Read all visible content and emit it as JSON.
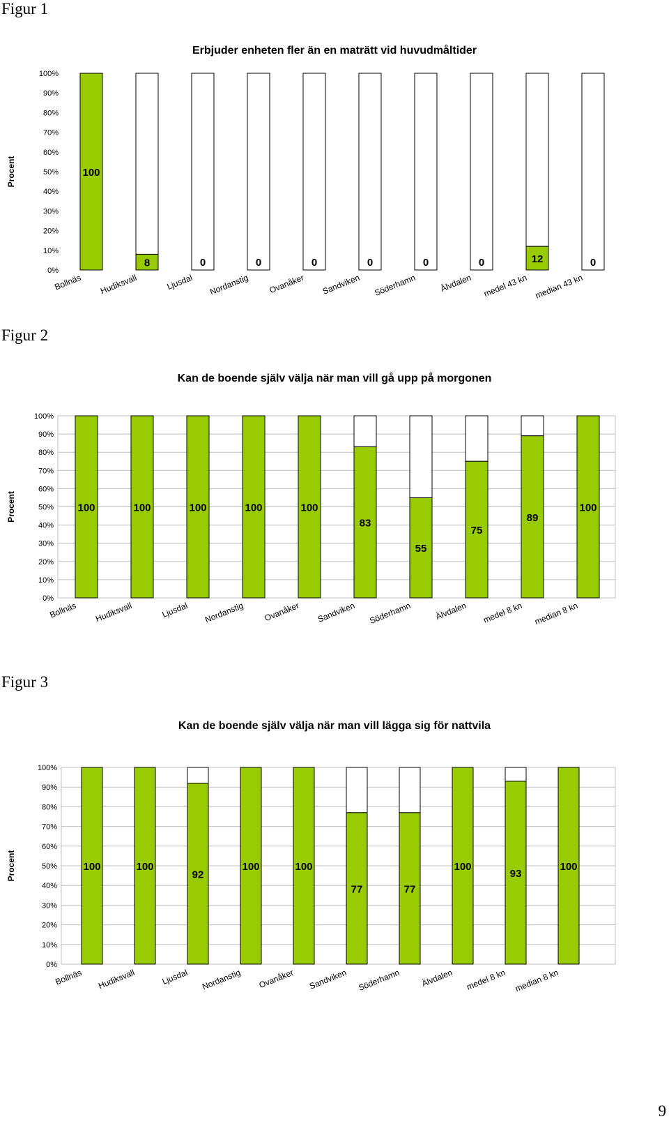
{
  "figures": [
    {
      "label": "Figur 1"
    },
    {
      "label": "Figur 2"
    },
    {
      "label": "Figur 3"
    }
  ],
  "page_number": "9",
  "colors": {
    "fill": "#99cc00",
    "remainder": "#ffffff",
    "grid": "#c0c0c0",
    "stroke": "#000000"
  },
  "chart_data": [
    {
      "type": "bar",
      "stacked": "100%",
      "title": "Erbjuder enheten fler än en maträtt vid huvudmåltider",
      "ylabel": "Procent",
      "xlabel": "",
      "ylim": [
        0,
        100
      ],
      "yticks": [
        "0%",
        "10%",
        "20%",
        "30%",
        "40%",
        "50%",
        "60%",
        "70%",
        "80%",
        "90%",
        "100%"
      ],
      "grid": false,
      "categories": [
        "Bollnäs",
        "Hudiksvall",
        "Ljusdal",
        "Nordanstig",
        "Ovanåker",
        "Sandviken",
        "Söderhamn",
        "Älvdalen",
        "medel 43 kn",
        "median 43 kn"
      ],
      "values": [
        100,
        8,
        0,
        0,
        0,
        0,
        0,
        0,
        12,
        0
      ],
      "data_labels": [
        "100",
        "8",
        "0",
        "0",
        "0",
        "0",
        "0",
        "0",
        "12",
        "0"
      ]
    },
    {
      "type": "bar",
      "stacked": "100%",
      "title": "Kan de boende själv välja när man vill gå upp på morgonen",
      "ylabel": "Procent",
      "xlabel": "",
      "ylim": [
        0,
        100
      ],
      "yticks": [
        "0%",
        "10%",
        "20%",
        "30%",
        "40%",
        "50%",
        "60%",
        "70%",
        "80%",
        "90%",
        "100%"
      ],
      "grid": true,
      "categories": [
        "Bollnäs",
        "Hudiksvall",
        "Ljusdal",
        "Nordanstig",
        "Ovanåker",
        "Sandviken",
        "Söderhamn",
        "Älvdalen",
        "medel 8 kn",
        "median 8 kn"
      ],
      "values": [
        100,
        100,
        100,
        100,
        100,
        83,
        55,
        75,
        89,
        100
      ],
      "data_labels": [
        "100",
        "100",
        "100",
        "100",
        "100",
        "83",
        "55",
        "75",
        "89",
        "100"
      ]
    },
    {
      "type": "bar",
      "stacked": "100%",
      "title": "Kan de boende själv välja när man vill lägga sig för nattvila",
      "ylabel": "Procent",
      "xlabel": "",
      "ylim": [
        0,
        100
      ],
      "yticks": [
        "0%",
        "10%",
        "20%",
        "30%",
        "40%",
        "50%",
        "60%",
        "70%",
        "80%",
        "90%",
        "100%"
      ],
      "grid": true,
      "categories": [
        "Bollnäs",
        "Hudiksvall",
        "Ljusdal",
        "Nordanstig",
        "Ovanåker",
        "Sandviken",
        "Söderhamn",
        "Älvdalen",
        "medel 8 kn",
        "median 8 kn"
      ],
      "values": [
        100,
        100,
        92,
        100,
        100,
        77,
        77,
        100,
        93,
        100
      ],
      "data_labels": [
        "100",
        "100",
        "92",
        "100",
        "100",
        "77",
        "77",
        "100",
        "93",
        "100"
      ]
    }
  ]
}
